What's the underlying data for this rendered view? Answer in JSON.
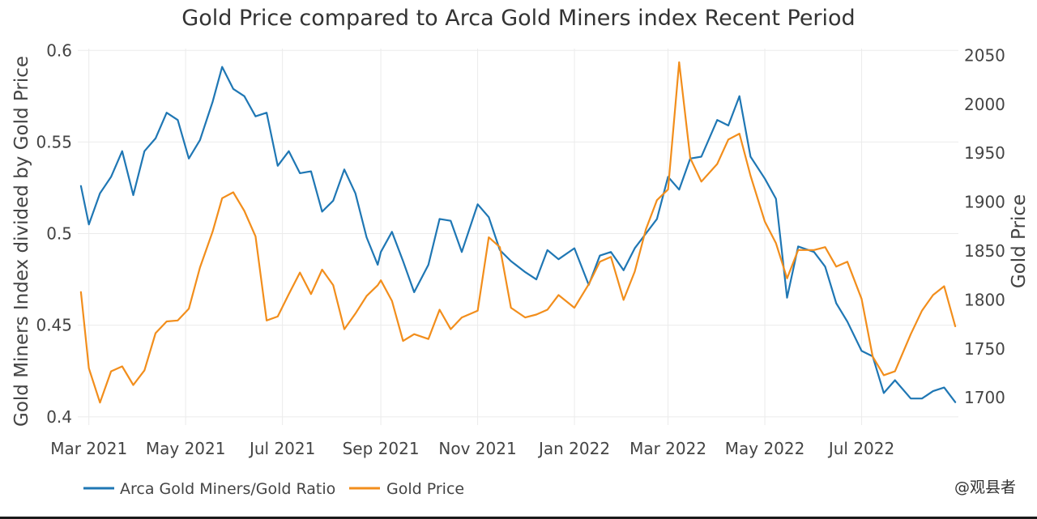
{
  "chart_data": {
    "type": "line",
    "title": "Gold Price compared to Arca Gold Miners index Recent Period",
    "ylabel_left": "Gold Miners Index divided by Gold Price",
    "ylabel_right": "Gold Price",
    "x_ticks": [
      "Mar 2021",
      "May 2021",
      "Jul 2021",
      "Sep 2021",
      "Nov 2021",
      "Jan 2022",
      "Mar 2022",
      "May 2022",
      "Jul 2022"
    ],
    "y_left_ticks": [
      "0.6",
      "0.55",
      "0.5",
      "0.45",
      "0.4"
    ],
    "y_right_ticks": [
      "2050",
      "2000",
      "1950",
      "1900",
      "1850",
      "1800",
      "1750",
      "1700"
    ],
    "ylim_left": [
      0.3955,
      0.601
    ],
    "ylim_right": [
      1672,
      2057
    ],
    "x_range": [
      "2021-02-22",
      "2022-08-31"
    ],
    "grid": true,
    "legend_position": "bottom-left",
    "series": [
      {
        "name": "Arca Gold Miners/Gold Ratio",
        "axis": "left",
        "color": "#1f77b4",
        "x": [
          "2021-02-24",
          "2021-03-01",
          "2021-03-08",
          "2021-03-15",
          "2021-03-22",
          "2021-03-29",
          "2021-04-05",
          "2021-04-12",
          "2021-04-19",
          "2021-04-26",
          "2021-05-03",
          "2021-05-10",
          "2021-05-18",
          "2021-05-24",
          "2021-05-31",
          "2021-06-07",
          "2021-06-14",
          "2021-06-21",
          "2021-06-28",
          "2021-07-05",
          "2021-07-12",
          "2021-07-19",
          "2021-07-26",
          "2021-08-02",
          "2021-08-09",
          "2021-08-16",
          "2021-08-23",
          "2021-08-30",
          "2021-09-01",
          "2021-09-08",
          "2021-09-15",
          "2021-09-22",
          "2021-10-01",
          "2021-10-08",
          "2021-10-15",
          "2021-10-22",
          "2021-11-01",
          "2021-11-08",
          "2021-11-15",
          "2021-11-22",
          "2021-12-01",
          "2021-12-08",
          "2021-12-15",
          "2021-12-22",
          "2022-01-01",
          "2022-01-10",
          "2022-01-17",
          "2022-01-24",
          "2022-02-01",
          "2022-02-08",
          "2022-02-15",
          "2022-02-22",
          "2022-03-01",
          "2022-03-08",
          "2022-03-15",
          "2022-03-22",
          "2022-04-01",
          "2022-04-08",
          "2022-04-15",
          "2022-04-22",
          "2022-05-01",
          "2022-05-08",
          "2022-05-15",
          "2022-05-22",
          "2022-06-01",
          "2022-06-08",
          "2022-06-15",
          "2022-06-22",
          "2022-07-01",
          "2022-07-08",
          "2022-07-15",
          "2022-07-22",
          "2022-08-01",
          "2022-08-08",
          "2022-08-15",
          "2022-08-22",
          "2022-08-29"
        ],
        "values": [
          0.526,
          0.505,
          0.522,
          0.531,
          0.545,
          0.521,
          0.545,
          0.552,
          0.566,
          0.562,
          0.541,
          0.551,
          0.572,
          0.591,
          0.579,
          0.575,
          0.564,
          0.566,
          0.537,
          0.545,
          0.533,
          0.534,
          0.512,
          0.518,
          0.535,
          0.522,
          0.498,
          0.483,
          0.49,
          0.501,
          0.485,
          0.468,
          0.483,
          0.508,
          0.507,
          0.49,
          0.516,
          0.509,
          0.491,
          0.485,
          0.479,
          0.475,
          0.491,
          0.486,
          0.492,
          0.472,
          0.488,
          0.49,
          0.48,
          0.492,
          0.5,
          0.508,
          0.531,
          0.524,
          0.541,
          0.542,
          0.562,
          0.559,
          0.575,
          0.542,
          0.53,
          0.519,
          0.465,
          0.493,
          0.49,
          0.482,
          0.462,
          0.452,
          0.436,
          0.433,
          0.413,
          0.42,
          0.41,
          0.41,
          0.414,
          0.416,
          0.408
        ]
      },
      {
        "name": "Gold Price",
        "axis": "right",
        "color": "#f28e1c",
        "x": [
          "2021-02-24",
          "2021-03-01",
          "2021-03-08",
          "2021-03-15",
          "2021-03-22",
          "2021-03-29",
          "2021-04-05",
          "2021-04-12",
          "2021-04-19",
          "2021-04-26",
          "2021-05-03",
          "2021-05-10",
          "2021-05-18",
          "2021-05-24",
          "2021-05-31",
          "2021-06-07",
          "2021-06-14",
          "2021-06-21",
          "2021-06-28",
          "2021-07-05",
          "2021-07-12",
          "2021-07-19",
          "2021-07-26",
          "2021-08-02",
          "2021-08-09",
          "2021-08-16",
          "2021-08-23",
          "2021-08-30",
          "2021-09-01",
          "2021-09-08",
          "2021-09-15",
          "2021-09-22",
          "2021-10-01",
          "2021-10-08",
          "2021-10-15",
          "2021-10-22",
          "2021-11-01",
          "2021-11-08",
          "2021-11-15",
          "2021-11-22",
          "2021-12-01",
          "2021-12-08",
          "2021-12-15",
          "2021-12-22",
          "2022-01-01",
          "2022-01-10",
          "2022-01-17",
          "2022-01-24",
          "2022-02-01",
          "2022-02-08",
          "2022-02-15",
          "2022-02-22",
          "2022-03-01",
          "2022-03-08",
          "2022-03-15",
          "2022-03-22",
          "2022-04-01",
          "2022-04-08",
          "2022-04-15",
          "2022-04-22",
          "2022-05-01",
          "2022-05-08",
          "2022-05-15",
          "2022-05-22",
          "2022-06-01",
          "2022-06-08",
          "2022-06-15",
          "2022-06-22",
          "2022-07-01",
          "2022-07-08",
          "2022-07-15",
          "2022-07-22",
          "2022-08-01",
          "2022-08-08",
          "2022-08-15",
          "2022-08-22",
          "2022-08-29"
        ],
        "values": [
          1808,
          1730,
          1695,
          1727,
          1732,
          1713,
          1728,
          1766,
          1778,
          1779,
          1791,
          1833,
          1870,
          1904,
          1910,
          1891,
          1865,
          1779,
          1783,
          1806,
          1828,
          1806,
          1831,
          1815,
          1770,
          1786,
          1804,
          1815,
          1820,
          1799,
          1758,
          1765,
          1760,
          1790,
          1770,
          1782,
          1789,
          1864,
          1854,
          1792,
          1782,
          1785,
          1790,
          1805,
          1792,
          1816,
          1839,
          1844,
          1800,
          1829,
          1872,
          1902,
          1913,
          2043,
          1945,
          1921,
          1939,
          1964,
          1970,
          1927,
          1880,
          1858,
          1822,
          1851,
          1851,
          1854,
          1834,
          1839,
          1801,
          1742,
          1723,
          1727,
          1765,
          1789,
          1805,
          1814,
          1773
        ]
      }
    ]
  },
  "watermark": "@观县者"
}
